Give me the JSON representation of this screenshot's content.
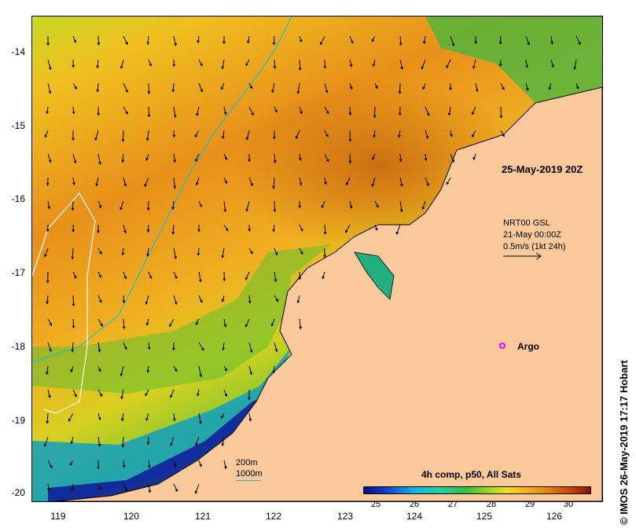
{
  "map": {
    "date_label": "25-May-2019 20Z",
    "legend": {
      "line1": "NRT00 GSL",
      "line2": "21-May 00:00Z",
      "line3": "0.5m/s (1kt 24h)"
    },
    "argo_label": "Argo",
    "contours": {
      "shallow": "200m",
      "deep": "1000m"
    },
    "latitude_ticks": [
      "-14",
      "-15",
      "-16",
      "-17",
      "-18",
      "-19",
      "-20"
    ],
    "longitude_ticks": [
      "119",
      "120",
      "121",
      "122",
      "123",
      "124",
      "125",
      "126"
    ],
    "colors": {
      "land": "#f9c89b",
      "contour_1000": "#20c0c0",
      "contour_200": "#ffffff",
      "argo": "#ff00ff"
    }
  },
  "colorbar": {
    "title": "4h comp, p50, All Sats",
    "ticks": [
      "25",
      "26",
      "27",
      "28",
      "29",
      "30"
    ],
    "range": [
      24.7,
      30.6
    ]
  },
  "credit": "© IMOS 26-May-2019 17:17 Hobart"
}
